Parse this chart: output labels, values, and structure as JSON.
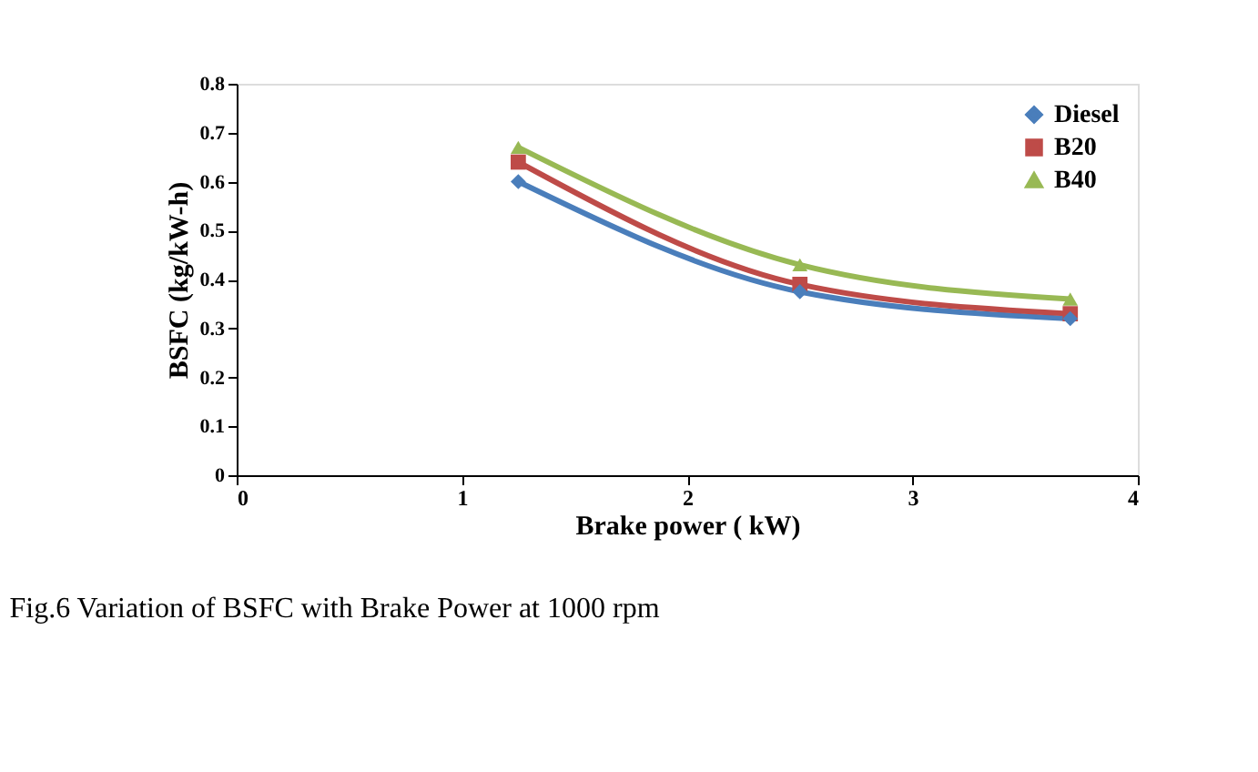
{
  "chart_data": {
    "type": "line",
    "xlabel": "Brake power ( kW)",
    "ylabel": "BSFC (kg/kW-h)",
    "x": [
      1.25,
      2.5,
      3.7
    ],
    "series": [
      {
        "name": "Diesel",
        "color": "#4a7ebb",
        "marker": "diamond",
        "values": [
          0.6,
          0.375,
          0.32
        ]
      },
      {
        "name": "B20",
        "color": "#be4b48",
        "marker": "square",
        "values": [
          0.64,
          0.39,
          0.33
        ]
      },
      {
        "name": "B40",
        "color": "#98b954",
        "marker": "triangle",
        "values": [
          0.67,
          0.43,
          0.36
        ]
      }
    ],
    "xlim": [
      0,
      4
    ],
    "xticks": [
      0,
      1,
      2,
      3,
      4
    ],
    "ylim": [
      0,
      0.8
    ],
    "yticks": [
      0,
      0.1,
      0.2,
      0.3,
      0.4,
      0.5,
      0.6,
      0.7,
      0.8
    ],
    "grid": false,
    "legend": "top right",
    "line_style": "solid",
    "annotations": [
      "Fig.6 Variation of BSFC with Brake Power at 1000 rpm"
    ]
  }
}
